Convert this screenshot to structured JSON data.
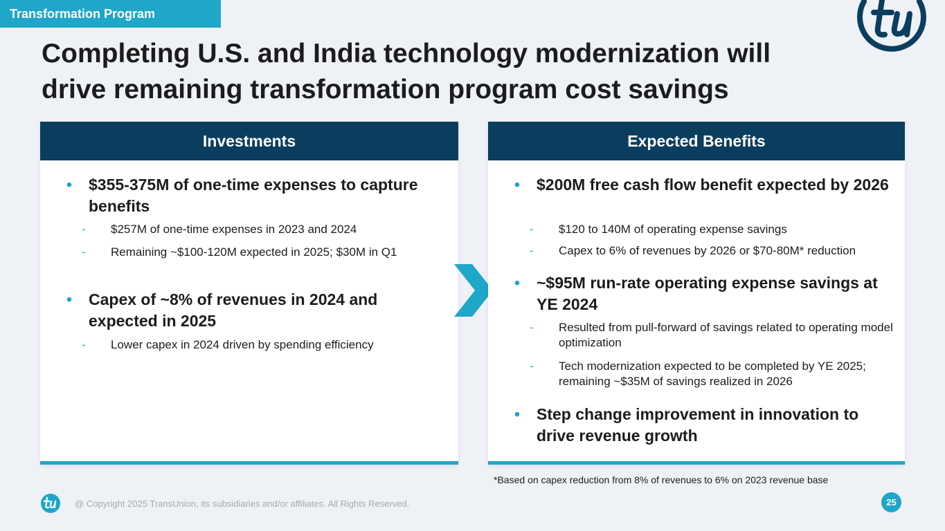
{
  "header": {
    "tag": "Transformation Program",
    "title_line1": "Completing U.S. and India technology modernization will",
    "title_line2": "drive remaining transformation program cost savings"
  },
  "investments": {
    "heading": "Investments",
    "b1": "$355-375M of one-time expenses to capture benefits",
    "b1_sub1": "$257M of one-time expenses in 2023 and 2024",
    "b1_sub2": "Remaining ~$100-120M expected in 2025; $30M in Q1",
    "b2": "Capex of ~8% of revenues in 2024 and expected in 2025",
    "b2_sub1": "Lower capex in 2024 driven by spending efficiency"
  },
  "benefits": {
    "heading": "Expected Benefits",
    "b1": "$200M free cash flow benefit expected by 2026",
    "b1_sub1": "$120 to 140M of operating expense savings",
    "b1_sub2": "Capex to 6% of revenues by 2026 or $70-80M* reduction",
    "b2": "~$95M run-rate operating expense savings at YE 2024",
    "b2_sub1": "Resulted from pull-forward of savings related to operating model optimization",
    "b2_sub2": "Tech modernization expected to be completed by YE 2025; remaining ~$35M of savings realized in 2026",
    "b3": "Step change improvement in innovation to drive revenue growth"
  },
  "footnote": "*Based on capex reduction from 8% of revenues to 6% on 2023 revenue base",
  "footer": {
    "copyright": "@ Copyright 2025 TransUnion, its subsidiaries and/or affiliates.  All Rights Reserved.",
    "page_number": "25"
  },
  "colors": {
    "accent": "#1ea7c9",
    "navy": "#0b3e5e",
    "background": "#eef1f5"
  },
  "icons": {
    "bullet": "•",
    "dash": "-",
    "logo": "tu-logo-icon",
    "arrow": "chevron-right-icon"
  }
}
